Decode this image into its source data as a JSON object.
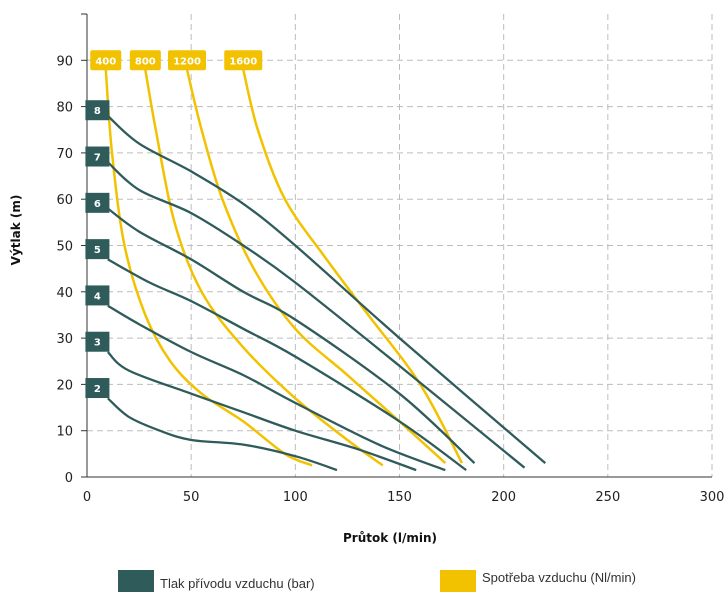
{
  "chart_data": {
    "type": "line",
    "xlabel": "Průtok (l/min)",
    "ylabel": "Výtlak (m)",
    "xlim": [
      0,
      300
    ],
    "ylim": [
      0,
      100
    ],
    "x_ticks": [
      "0",
      "50",
      "100",
      "150",
      "200",
      "250",
      "300"
    ],
    "y_ticks": [
      "0",
      "10",
      "20",
      "30",
      "40",
      "50",
      "60",
      "70",
      "80",
      "90"
    ],
    "grid": true,
    "colors": {
      "pressure": "#2f5b5b",
      "consumption": "#f2c200"
    },
    "pressure_series": [
      {
        "name": "2",
        "points": [
          [
            10,
            17
          ],
          [
            20,
            13
          ],
          [
            35,
            10
          ],
          [
            50,
            8
          ],
          [
            75,
            7
          ],
          [
            100,
            4.5
          ],
          [
            120,
            1.5
          ]
        ]
      },
      {
        "name": "3",
        "points": [
          [
            10,
            27
          ],
          [
            20,
            23
          ],
          [
            50,
            18
          ],
          [
            75,
            14
          ],
          [
            100,
            10
          ],
          [
            130,
            6
          ],
          [
            158,
            1.5
          ]
        ]
      },
      {
        "name": "4",
        "points": [
          [
            10,
            37
          ],
          [
            25,
            33
          ],
          [
            50,
            27
          ],
          [
            75,
            22
          ],
          [
            100,
            16
          ],
          [
            140,
            7
          ],
          [
            172,
            1.5
          ]
        ]
      },
      {
        "name": "5",
        "points": [
          [
            10,
            47
          ],
          [
            30,
            42
          ],
          [
            50,
            38
          ],
          [
            75,
            32
          ],
          [
            100,
            26
          ],
          [
            150,
            12
          ],
          [
            182,
            1.5
          ]
        ]
      },
      {
        "name": "6",
        "points": [
          [
            10,
            58
          ],
          [
            25,
            53
          ],
          [
            50,
            47
          ],
          [
            75,
            40
          ],
          [
            100,
            34
          ],
          [
            150,
            18
          ],
          [
            186,
            3
          ]
        ]
      },
      {
        "name": "7",
        "points": [
          [
            10,
            68
          ],
          [
            25,
            62
          ],
          [
            50,
            57
          ],
          [
            75,
            50
          ],
          [
            100,
            42
          ],
          [
            150,
            24
          ],
          [
            210,
            2
          ]
        ]
      },
      {
        "name": "8",
        "points": [
          [
            10,
            78
          ],
          [
            25,
            72
          ],
          [
            50,
            66
          ],
          [
            75,
            59
          ],
          [
            100,
            50
          ],
          [
            150,
            30
          ],
          [
            220,
            3
          ]
        ]
      }
    ],
    "consumption_series": [
      {
        "name": "400",
        "points": [
          [
            9,
            88
          ],
          [
            12,
            70
          ],
          [
            18,
            50
          ],
          [
            28,
            35
          ],
          [
            40,
            25
          ],
          [
            55,
            18
          ],
          [
            75,
            12
          ],
          [
            95,
            5
          ],
          [
            108,
            2.5
          ]
        ]
      },
      {
        "name": "800",
        "points": [
          [
            28,
            88
          ],
          [
            33,
            75
          ],
          [
            42,
            55
          ],
          [
            55,
            40
          ],
          [
            75,
            28
          ],
          [
            100,
            17
          ],
          [
            125,
            8
          ],
          [
            142,
            2.5
          ]
        ]
      },
      {
        "name": "1200",
        "points": [
          [
            48,
            88
          ],
          [
            55,
            75
          ],
          [
            65,
            60
          ],
          [
            80,
            45
          ],
          [
            100,
            32
          ],
          [
            125,
            22
          ],
          [
            150,
            12
          ],
          [
            172,
            3
          ]
        ]
      },
      {
        "name": "1600",
        "points": [
          [
            75,
            88
          ],
          [
            82,
            75
          ],
          [
            95,
            60
          ],
          [
            115,
            47
          ],
          [
            135,
            35
          ],
          [
            160,
            20
          ],
          [
            180,
            3
          ]
        ]
      }
    ]
  },
  "legend": {
    "pressure_label": "Tlak přívodu vzduchu (bar)",
    "consumption_label": "Spotřeba vzduchu (Nl/min)"
  }
}
